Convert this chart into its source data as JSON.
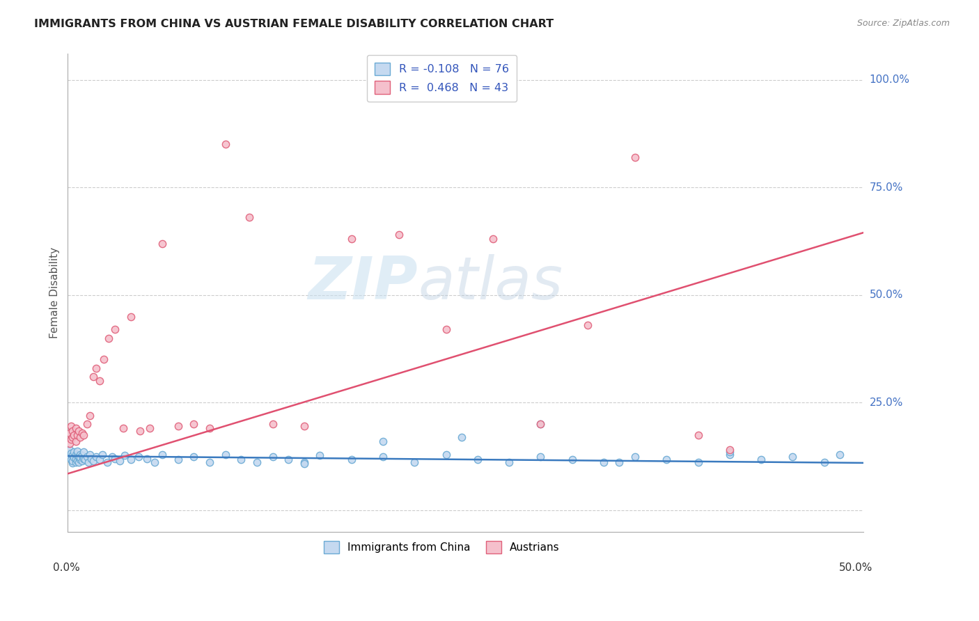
{
  "title": "IMMIGRANTS FROM CHINA VS AUSTRIAN FEMALE DISABILITY CORRELATION CHART",
  "source": "Source: ZipAtlas.com",
  "ylabel": "Female Disability",
  "legend_label_1": "Immigrants from China",
  "legend_label_2": "Austrians",
  "r1": "-0.108",
  "n1": "76",
  "r2": "0.468",
  "n2": "43",
  "color_china_face": "#c5d9f0",
  "color_china_edge": "#6aaad4",
  "color_austria_face": "#f5c0cc",
  "color_austria_edge": "#e0607a",
  "line_color_china": "#3a7abf",
  "line_color_austria": "#e05070",
  "watermark_zip": "ZIP",
  "watermark_atlas": "atlas",
  "xlim_min": 0.0,
  "xlim_max": 0.505,
  "ylim_min": -0.05,
  "ylim_max": 1.06,
  "ytick_vals": [
    0.0,
    0.25,
    0.5,
    0.75,
    1.0
  ],
  "ytick_labels": [
    "",
    "25.0%",
    "50.0%",
    "75.0%",
    "100.0%"
  ],
  "china_x": [
    0.001,
    0.001,
    0.002,
    0.002,
    0.003,
    0.003,
    0.003,
    0.004,
    0.004,
    0.005,
    0.005,
    0.005,
    0.006,
    0.006,
    0.006,
    0.007,
    0.007,
    0.008,
    0.008,
    0.008,
    0.009,
    0.009,
    0.01,
    0.01,
    0.011,
    0.012,
    0.013,
    0.014,
    0.015,
    0.016,
    0.018,
    0.02,
    0.022,
    0.025,
    0.028,
    0.03,
    0.033,
    0.036,
    0.04,
    0.045,
    0.05,
    0.055,
    0.06,
    0.07,
    0.08,
    0.09,
    0.1,
    0.11,
    0.12,
    0.13,
    0.14,
    0.15,
    0.16,
    0.18,
    0.2,
    0.22,
    0.24,
    0.26,
    0.28,
    0.3,
    0.32,
    0.34,
    0.36,
    0.38,
    0.4,
    0.42,
    0.44,
    0.46,
    0.48,
    0.49,
    0.15,
    0.2,
    0.25,
    0.3,
    0.35,
    0.42
  ],
  "china_y": [
    0.125,
    0.14,
    0.118,
    0.132,
    0.11,
    0.128,
    0.115,
    0.122,
    0.135,
    0.112,
    0.13,
    0.12,
    0.115,
    0.128,
    0.138,
    0.112,
    0.125,
    0.118,
    0.13,
    0.122,
    0.115,
    0.128,
    0.12,
    0.135,
    0.118,
    0.125,
    0.112,
    0.13,
    0.12,
    0.115,
    0.125,
    0.118,
    0.13,
    0.112,
    0.125,
    0.12,
    0.115,
    0.128,
    0.118,
    0.125,
    0.12,
    0.112,
    0.13,
    0.118,
    0.125,
    0.112,
    0.13,
    0.118,
    0.112,
    0.125,
    0.118,
    0.112,
    0.128,
    0.118,
    0.125,
    0.112,
    0.13,
    0.118,
    0.112,
    0.125,
    0.118,
    0.112,
    0.125,
    0.118,
    0.112,
    0.13,
    0.118,
    0.125,
    0.112,
    0.13,
    0.108,
    0.16,
    0.17,
    0.2,
    0.112,
    0.135
  ],
  "austria_x": [
    0.001,
    0.001,
    0.002,
    0.002,
    0.003,
    0.003,
    0.004,
    0.005,
    0.005,
    0.006,
    0.007,
    0.008,
    0.009,
    0.01,
    0.012,
    0.014,
    0.016,
    0.018,
    0.02,
    0.023,
    0.026,
    0.03,
    0.035,
    0.04,
    0.046,
    0.052,
    0.06,
    0.07,
    0.08,
    0.09,
    0.1,
    0.115,
    0.13,
    0.15,
    0.18,
    0.21,
    0.24,
    0.27,
    0.3,
    0.33,
    0.36,
    0.4,
    0.42
  ],
  "austria_y": [
    0.155,
    0.18,
    0.165,
    0.195,
    0.17,
    0.185,
    0.175,
    0.19,
    0.16,
    0.175,
    0.185,
    0.17,
    0.18,
    0.175,
    0.2,
    0.22,
    0.31,
    0.33,
    0.3,
    0.35,
    0.4,
    0.42,
    0.19,
    0.45,
    0.185,
    0.19,
    0.62,
    0.195,
    0.2,
    0.19,
    0.85,
    0.68,
    0.2,
    0.195,
    0.63,
    0.64,
    0.42,
    0.63,
    0.2,
    0.43,
    0.82,
    0.175,
    0.14
  ],
  "austria_line_x0": 0.0,
  "austria_line_y0": 0.085,
  "austria_line_x1": 0.505,
  "austria_line_y1": 0.645,
  "china_line_x0": 0.0,
  "china_line_y0": 0.126,
  "china_line_x1": 0.505,
  "china_line_y1": 0.11
}
